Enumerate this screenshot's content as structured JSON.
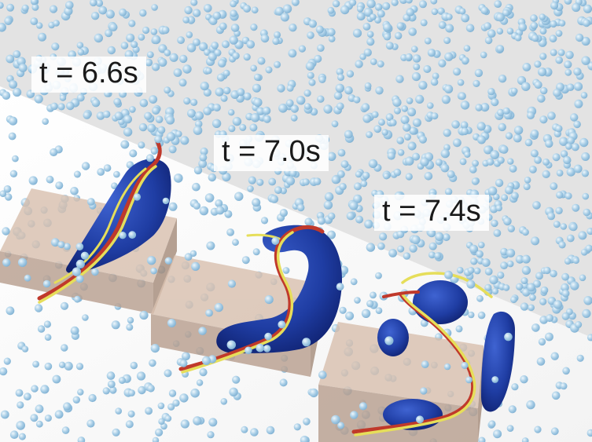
{
  "labels": [
    {
      "text": "t = 6.6s"
    },
    {
      "text": "t = 7.0s"
    },
    {
      "text": "t = 7.4s"
    }
  ],
  "colors": {
    "particle": "#9dc7e3",
    "particle_highlight": "#e8f4fb",
    "blob": "#1f3da3",
    "blob_dark": "#0e1f6b",
    "ribbon_yellow": "#e6de5a",
    "ribbon_red": "#c0392b",
    "box_top": "#d7bfae",
    "box_front": "#b79f8f",
    "background_gray": "#e6e6e6"
  },
  "icons": [
    "particle-icon",
    "vortex-blob",
    "stream-ribbon",
    "obstacle-box"
  ]
}
